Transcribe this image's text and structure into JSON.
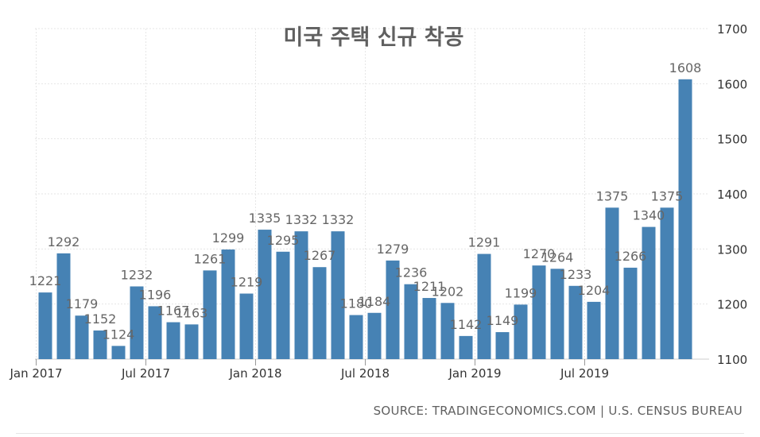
{
  "chart_data": {
    "type": "bar",
    "title": "미국 주택 신규 착공",
    "xlabel": "",
    "ylabel": "",
    "ylim": [
      1100,
      1700
    ],
    "y_ticks": [
      1100,
      1200,
      1300,
      1400,
      1500,
      1600,
      1700
    ],
    "x_tick_labels": [
      "Jan 2017",
      "Jul 2017",
      "Jan 2018",
      "Jul 2018",
      "Jan 2019",
      "Jul 2019"
    ],
    "x_tick_indices": [
      0,
      6,
      12,
      18,
      24,
      30
    ],
    "categories": [
      "Jan 2017",
      "Feb 2017",
      "Mar 2017",
      "Apr 2017",
      "May 2017",
      "Jun 2017",
      "Jul 2017",
      "Aug 2017",
      "Sep 2017",
      "Oct 2017",
      "Nov 2017",
      "Dec 2017",
      "Jan 2018",
      "Feb 2018",
      "Mar 2018",
      "Apr 2018",
      "May 2018",
      "Jun 2018",
      "Jul 2018",
      "Aug 2018",
      "Sep 2018",
      "Oct 2018",
      "Nov 2018",
      "Dec 2018",
      "Jan 2019",
      "Feb 2019",
      "Mar 2019",
      "Apr 2019",
      "May 2019",
      "Jun 2019",
      "Jul 2019",
      "Aug 2019",
      "Sep 2019",
      "Oct 2019",
      "Nov 2019",
      "Dec 2019"
    ],
    "values": [
      1221,
      1292,
      1179,
      1152,
      1124,
      1232,
      1196,
      1167,
      1163,
      1261,
      1299,
      1219,
      1335,
      1295,
      1332,
      1267,
      1332,
      1180,
      1184,
      1279,
      1236,
      1211,
      1202,
      1142,
      1291,
      1149,
      1199,
      1270,
      1264,
      1233,
      1204,
      1375,
      1266,
      1340,
      1375,
      1608
    ],
    "bar_color": "#4682b4",
    "grid": true,
    "y_axis_side": "right"
  },
  "footer": {
    "source": "SOURCE: TRADINGECONOMICS.COM | U.S. CENSUS BUREAU"
  }
}
